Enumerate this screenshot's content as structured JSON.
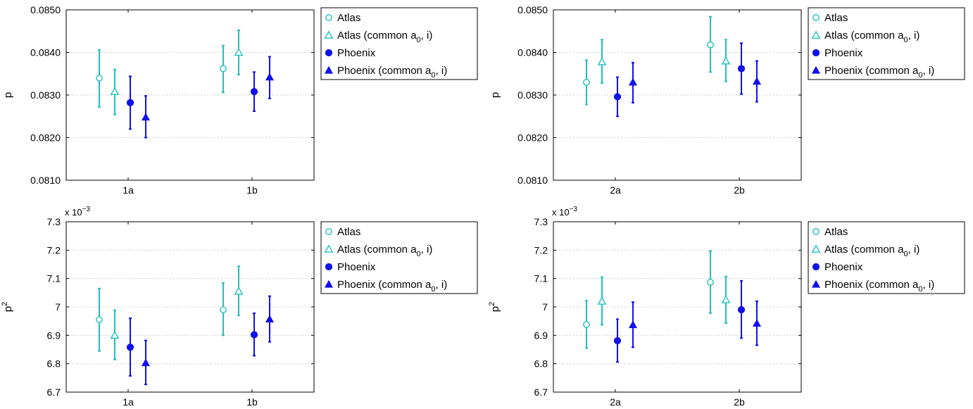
{
  "colors": {
    "atlas": "#20c0c0",
    "phoenix": "#1010ee"
  },
  "legend": [
    {
      "label": "Atlas",
      "sub": "",
      "after": "",
      "marker": "circle-open",
      "color": "#20c0c0"
    },
    {
      "label": "Atlas (common a",
      "sub": "0",
      "after": ", i)",
      "marker": "triangle-open",
      "color": "#20c0c0"
    },
    {
      "label": "Phoenix",
      "sub": "",
      "after": "",
      "marker": "circle-filled",
      "color": "#1010ee"
    },
    {
      "label": "Phoenix (common a",
      "sub": "0",
      "after": ", i)",
      "marker": "triangle-filled",
      "color": "#1010ee"
    }
  ],
  "chart_data": [
    {
      "type": "scatter",
      "errorbars": true,
      "ylabel": "p",
      "ylabel_sup": "",
      "exponent_label": "",
      "ylim": [
        0.081,
        0.085
      ],
      "yticks": [
        0.081,
        0.082,
        0.083,
        0.084,
        0.085
      ],
      "ytick_labels": [
        "0.0810",
        "0.0820",
        "0.0830",
        "0.0840",
        "0.0850"
      ],
      "categories": [
        "1a",
        "1b"
      ],
      "grid": true,
      "legend_position": "outside-top-right",
      "series": [
        {
          "name": "Atlas",
          "values": [
            0.0834,
            0.08362
          ],
          "low": [
            0.08272,
            0.08306
          ],
          "high": [
            0.08406,
            0.08416
          ]
        },
        {
          "name": "Atlas (common a0, i)",
          "values": [
            0.08308,
            0.084
          ],
          "low": [
            0.08254,
            0.08348
          ],
          "high": [
            0.0836,
            0.08452
          ]
        },
        {
          "name": "Phoenix",
          "values": [
            0.08282,
            0.08308
          ],
          "low": [
            0.0822,
            0.08262
          ],
          "high": [
            0.08344,
            0.08354
          ]
        },
        {
          "name": "Phoenix (common a0, i)",
          "values": [
            0.08248,
            0.08342
          ],
          "low": [
            0.082,
            0.08292
          ],
          "high": [
            0.08298,
            0.0839
          ]
        }
      ]
    },
    {
      "type": "scatter",
      "errorbars": true,
      "ylabel": "p",
      "ylabel_sup": "",
      "exponent_label": "",
      "ylim": [
        0.081,
        0.085
      ],
      "yticks": [
        0.081,
        0.082,
        0.083,
        0.084,
        0.085
      ],
      "ytick_labels": [
        "0.0810",
        "0.0820",
        "0.0830",
        "0.0840",
        "0.0850"
      ],
      "categories": [
        "2a",
        "2b"
      ],
      "grid": true,
      "legend_position": "outside-top-right",
      "series": [
        {
          "name": "Atlas",
          "values": [
            0.0833,
            0.08418
          ],
          "low": [
            0.08278,
            0.08354
          ],
          "high": [
            0.08382,
            0.08484
          ]
        },
        {
          "name": "Atlas (common a0, i)",
          "values": [
            0.08378,
            0.0838
          ],
          "low": [
            0.08328,
            0.08332
          ],
          "high": [
            0.0843,
            0.0843
          ]
        },
        {
          "name": "Phoenix",
          "values": [
            0.08296,
            0.08362
          ],
          "low": [
            0.0825,
            0.08302
          ],
          "high": [
            0.08342,
            0.08422
          ]
        },
        {
          "name": "Phoenix (common a0, i)",
          "values": [
            0.0833,
            0.08332
          ],
          "low": [
            0.08282,
            0.08284
          ],
          "high": [
            0.08376,
            0.0838
          ]
        }
      ]
    },
    {
      "type": "scatter",
      "errorbars": true,
      "ylabel": "p",
      "ylabel_sup": "2",
      "exponent_label": "x 10",
      "exponent_sup": "−3",
      "ylim": [
        6.7,
        7.3
      ],
      "yticks": [
        6.7,
        6.8,
        6.9,
        7.0,
        7.1,
        7.2,
        7.3
      ],
      "ytick_labels": [
        "6.7",
        "6.8",
        "6.9",
        "7",
        "7.1",
        "7.2",
        "7.3"
      ],
      "categories": [
        "1a",
        "1b"
      ],
      "grid": true,
      "legend_position": "outside-top-right",
      "series": [
        {
          "name": "Atlas",
          "values": [
            6.955,
            6.99
          ],
          "low": [
            6.845,
            6.9
          ],
          "high": [
            7.065,
            7.085
          ]
        },
        {
          "name": "Atlas (common a0, i)",
          "values": [
            6.9,
            7.055
          ],
          "low": [
            6.815,
            6.97
          ],
          "high": [
            6.988,
            7.143
          ]
        },
        {
          "name": "Phoenix",
          "values": [
            6.858,
            6.902
          ],
          "low": [
            6.757,
            6.828
          ],
          "high": [
            6.96,
            6.978
          ]
        },
        {
          "name": "Phoenix (common a0, i)",
          "values": [
            6.803,
            6.957
          ],
          "low": [
            6.727,
            6.877
          ],
          "high": [
            6.882,
            7.038
          ]
        }
      ]
    },
    {
      "type": "scatter",
      "errorbars": true,
      "ylabel": "p",
      "ylabel_sup": "2",
      "exponent_label": "x 10",
      "exponent_sup": "−3",
      "ylim": [
        6.7,
        7.3
      ],
      "yticks": [
        6.7,
        6.8,
        6.9,
        7.0,
        7.1,
        7.2,
        7.3
      ],
      "ytick_labels": [
        "6.7",
        "6.8",
        "6.9",
        "7",
        "7.1",
        "7.2",
        "7.3"
      ],
      "categories": [
        "2a",
        "2b"
      ],
      "grid": true,
      "legend_position": "outside-top-right",
      "series": [
        {
          "name": "Atlas",
          "values": [
            6.938,
            7.087
          ],
          "low": [
            6.855,
            6.978
          ],
          "high": [
            7.022,
            7.197
          ]
        },
        {
          "name": "Atlas (common a0, i)",
          "values": [
            7.02,
            7.025
          ],
          "low": [
            6.937,
            6.943
          ],
          "high": [
            7.105,
            7.107
          ]
        },
        {
          "name": "Phoenix",
          "values": [
            6.881,
            6.99
          ],
          "low": [
            6.806,
            6.89
          ],
          "high": [
            6.957,
            7.092
          ]
        },
        {
          "name": "Phoenix (common a0, i)",
          "values": [
            6.937,
            6.942
          ],
          "low": [
            6.858,
            6.865
          ],
          "high": [
            7.017,
            7.02
          ]
        }
      ]
    }
  ]
}
